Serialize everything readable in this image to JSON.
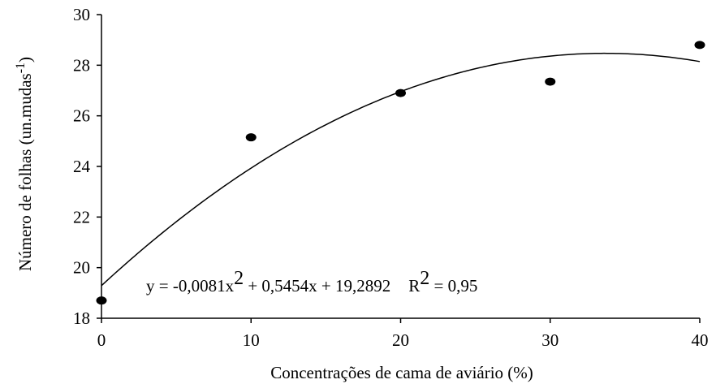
{
  "chart_data": {
    "type": "scatter",
    "xlabel": "Concentrações de cama de aviário (%)",
    "ylabel": {
      "text": "Número de folhas (un.mudas",
      "superscript": "-1",
      "close": ")"
    },
    "xlim": [
      0,
      40
    ],
    "ylim": [
      18,
      30
    ],
    "xticks": [
      "0",
      "10",
      "20",
      "30",
      "40"
    ],
    "yticks": [
      "18",
      "20",
      "22",
      "24",
      "26",
      "28",
      "30"
    ],
    "grid": false,
    "series": [
      {
        "x": [
          0,
          10,
          20,
          30,
          40
        ],
        "y": [
          18.7,
          25.15,
          26.9,
          27.35,
          28.8
        ]
      }
    ],
    "fit": {
      "coefficients": {
        "a": -0.0081,
        "b": 0.5454,
        "c": 19.2892
      }
    },
    "equation": {
      "lhs": "y = -0,0081x",
      "exp": "2",
      "rest": " + 0,5454x + 19,2892",
      "r_label": "R",
      "r_exp": "2",
      "r_value": " = 0,95"
    }
  }
}
